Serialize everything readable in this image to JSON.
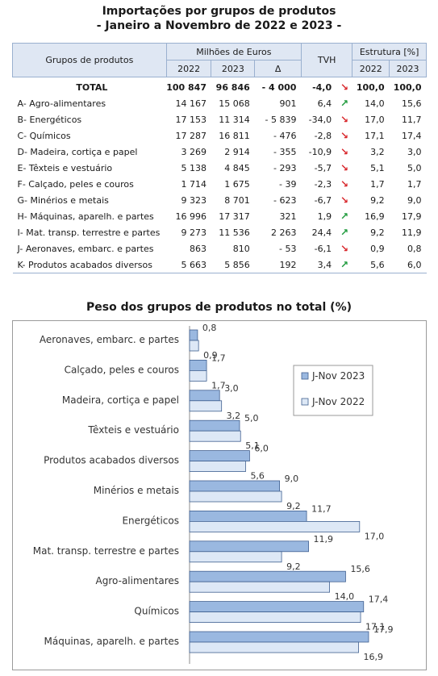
{
  "title_line1": "Importações por grupos de produtos",
  "title_line2": "- Janeiro a Novembro de 2022 e 2023 -",
  "table": {
    "header": {
      "groups": "Grupos de produtos",
      "millions": "Milhões de Euros",
      "tvh": "TVH",
      "estrutura": "Estrutura [%]",
      "y2022": "2022",
      "y2023": "2023",
      "delta": "Δ",
      "s2022": "2022",
      "s2023": "2023"
    },
    "rows": [
      {
        "label": "TOTAL",
        "v2022": "100 847",
        "v2023": "96 846",
        "delta": "- 4 000",
        "tvh": "-4,0",
        "arrow": "↘",
        "s2022": "100,0",
        "s2023": "100,0"
      },
      {
        "label": "A-  Agro-alimentares",
        "v2022": "14 167",
        "v2023": "15 068",
        "delta": "901",
        "tvh": "6,4",
        "arrow": "↗",
        "s2022": "14,0",
        "s2023": "15,6"
      },
      {
        "label": "B-  Energéticos",
        "v2022": "17 153",
        "v2023": "11 314",
        "delta": "- 5 839",
        "tvh": "-34,0",
        "arrow": "↘",
        "s2022": "17,0",
        "s2023": "11,7"
      },
      {
        "label": "C-  Químicos",
        "v2022": "17 287",
        "v2023": "16 811",
        "delta": "- 476",
        "tvh": "-2,8",
        "arrow": "↘",
        "s2022": "17,1",
        "s2023": "17,4"
      },
      {
        "label": "D-  Madeira, cortiça e papel",
        "v2022": "3 269",
        "v2023": "2 914",
        "delta": "- 355",
        "tvh": "-10,9",
        "arrow": "↘",
        "s2022": "3,2",
        "s2023": "3,0"
      },
      {
        "label": "E-  Têxteis e vestuário",
        "v2022": "5 138",
        "v2023": "4 845",
        "delta": "- 293",
        "tvh": "-5,7",
        "arrow": "↘",
        "s2022": "5,1",
        "s2023": "5,0"
      },
      {
        "label": "F-  Calçado, peles e couros",
        "v2022": "1 714",
        "v2023": "1 675",
        "delta": "- 39",
        "tvh": "-2,3",
        "arrow": "↘",
        "s2022": "1,7",
        "s2023": "1,7"
      },
      {
        "label": "G-  Minérios e metais",
        "v2022": "9 323",
        "v2023": "8 701",
        "delta": "- 623",
        "tvh": "-6,7",
        "arrow": "↘",
        "s2022": "9,2",
        "s2023": "9,0"
      },
      {
        "label": "H-  Máquinas, aparelh. e partes",
        "v2022": "16 996",
        "v2023": "17 317",
        "delta": "321",
        "tvh": "1,9",
        "arrow": "↗",
        "s2022": "16,9",
        "s2023": "17,9"
      },
      {
        "label": "I-  Mat. transp. terrestre e partes",
        "v2022": "9 273",
        "v2023": "11 536",
        "delta": "2 263",
        "tvh": "24,4",
        "arrow": "↗",
        "s2022": "9,2",
        "s2023": "11,9"
      },
      {
        "label": "J-  Aeronaves, embarc. e partes",
        "v2022": "863",
        "v2023": "810",
        "delta": "- 53",
        "tvh": "-6,1",
        "arrow": "↘",
        "s2022": "0,9",
        "s2023": "0,8"
      },
      {
        "label": "K-  Produtos acabados diversos",
        "v2022": "5 663",
        "v2023": "5 856",
        "delta": "192",
        "tvh": "3,4",
        "arrow": "↗",
        "s2022": "5,6",
        "s2023": "6,0"
      }
    ]
  },
  "chart_title": "Peso dos grupos de produtos no total (%)",
  "colors": {
    "bar2023": "#9ab8e0",
    "bar2022": "#dde8f6",
    "bar_stroke": "#3f5f8f",
    "arrow_up": "#1e9a3c",
    "arrow_down": "#d8262b"
  },
  "chart_data": {
    "type": "bar",
    "orientation": "horizontal",
    "title": "Peso dos grupos de produtos no total (%)",
    "categories": [
      "Aeronaves, embarc. e partes",
      "Calçado, peles e couros",
      "Madeira, cortiça e papel",
      "Têxteis e vestuário",
      "Produtos acabados diversos",
      "Minérios e metais",
      "Energéticos",
      "Mat. transp. terrestre e partes",
      "Agro-alimentares",
      "Químicos",
      "Máquinas, aparelh. e partes"
    ],
    "series": [
      {
        "name": "J-Nov 2023",
        "values": [
          0.8,
          1.7,
          3.0,
          5.0,
          6.0,
          9.0,
          11.7,
          11.9,
          15.6,
          17.4,
          17.9
        ],
        "labels": [
          "0,8",
          "1,7",
          "3,0",
          "5,0",
          "6,0",
          "9,0",
          "11,7",
          "11,9",
          "15,6",
          "17,4",
          "17,9"
        ]
      },
      {
        "name": "J-Nov 2022",
        "values": [
          0.9,
          1.7,
          3.2,
          5.1,
          5.6,
          9.2,
          17.0,
          9.2,
          14.0,
          17.1,
          16.9
        ],
        "labels": [
          "0,9",
          "1,7",
          "3,2",
          "5,1",
          "5,6",
          "9,2",
          "17,0",
          "9,2",
          "14,0",
          "17,1",
          "16,9"
        ]
      }
    ],
    "xlim": [
      0,
      20
    ],
    "legend_position": "top-right"
  }
}
